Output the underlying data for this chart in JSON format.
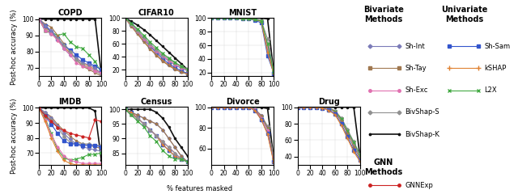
{
  "title_fontsize": 7,
  "axis_label_fontsize": 6,
  "tick_fontsize": 5.5,
  "legend_title_fontsize": 7,
  "legend_item_fontsize": 6,
  "ylabel": "Post-hoc accuracy (%)",
  "xlabel": "% features masked",
  "subplots": [
    "COPD",
    "CIFAR10",
    "MNIST",
    "IMDB",
    "Census",
    "Divorce",
    "Drug"
  ],
  "x": [
    0,
    10,
    20,
    30,
    40,
    50,
    60,
    70,
    80,
    90,
    100
  ],
  "colors": {
    "Sh-Int": "#7b7bb8",
    "Sh-Tay": "#a07850",
    "Sh-Exc": "#e070b0",
    "BivShap-S": "#909090",
    "BivShap-K": "#111111",
    "Sh-Sam": "#3355cc",
    "kSHAP": "#e08030",
    "L2X": "#44aa44",
    "GNNExp": "#cc2222"
  },
  "COPD": {
    "BivShap-K": [
      100,
      100,
      100,
      100,
      100,
      100,
      100,
      100,
      100,
      100,
      66
    ],
    "L2X": [
      100,
      93,
      92,
      90,
      91,
      86,
      83,
      82,
      78,
      74,
      67
    ],
    "Sh-Tay": [
      100,
      97,
      95,
      90,
      85,
      80,
      75,
      71,
      69,
      67,
      65
    ],
    "kSHAP": [
      100,
      95,
      92,
      87,
      83,
      79,
      76,
      73,
      71,
      69,
      67
    ],
    "Sh-Sam": [
      100,
      96,
      92,
      88,
      84,
      81,
      78,
      75,
      73,
      71,
      69
    ],
    "Sh-Int": [
      100,
      96,
      93,
      88,
      82,
      78,
      76,
      73,
      72,
      70,
      66
    ],
    "BivShap-S": [
      100,
      93,
      91,
      88,
      84,
      80,
      75,
      72,
      70,
      68,
      66
    ],
    "Sh-Exc": [
      100,
      93,
      91,
      87,
      82,
      78,
      73,
      71,
      70,
      68,
      67
    ]
  },
  "CIFAR10": {
    "BivShap-K": [
      100,
      95,
      89,
      82,
      74,
      65,
      56,
      47,
      38,
      29,
      20
    ],
    "Sh-Sam": [
      100,
      90,
      79,
      67,
      56,
      46,
      37,
      29,
      23,
      18,
      14
    ],
    "kSHAP": [
      100,
      88,
      76,
      64,
      53,
      43,
      34,
      27,
      21,
      16,
      13
    ],
    "Sh-Int": [
      100,
      89,
      78,
      67,
      57,
      48,
      40,
      33,
      27,
      22,
      18
    ],
    "Sh-Tay": [
      100,
      87,
      75,
      63,
      52,
      42,
      33,
      26,
      20,
      16,
      13
    ],
    "Sh-Exc": [
      100,
      90,
      79,
      68,
      58,
      49,
      41,
      34,
      28,
      23,
      19
    ],
    "BivShap-S": [
      100,
      91,
      81,
      70,
      60,
      51,
      43,
      36,
      30,
      25,
      21
    ],
    "L2X": [
      100,
      92,
      83,
      73,
      63,
      54,
      45,
      38,
      31,
      25,
      20
    ]
  },
  "MNIST": {
    "BivShap-K": [
      100,
      100,
      100,
      100,
      100,
      100,
      100,
      100,
      100,
      99,
      20
    ],
    "Sh-Int": [
      100,
      100,
      100,
      100,
      100,
      99,
      99,
      98,
      96,
      55,
      20
    ],
    "Sh-Tay": [
      100,
      100,
      100,
      100,
      100,
      99,
      99,
      98,
      96,
      60,
      18
    ],
    "Sh-Exc": [
      100,
      100,
      100,
      100,
      100,
      99,
      99,
      98,
      96,
      58,
      19
    ],
    "BivShap-S": [
      100,
      100,
      100,
      100,
      100,
      99,
      99,
      98,
      96,
      70,
      22
    ],
    "Sh-Sam": [
      100,
      100,
      100,
      100,
      100,
      99,
      99,
      97,
      93,
      45,
      19
    ],
    "kSHAP": [
      100,
      100,
      100,
      100,
      100,
      99,
      99,
      98,
      95,
      50,
      18
    ],
    "L2X": [
      100,
      100,
      100,
      100,
      100,
      99,
      99,
      98,
      96,
      62,
      21
    ]
  },
  "IMDB": {
    "BivShap-K": [
      100,
      100,
      100,
      100,
      100,
      100,
      100,
      100,
      100,
      98,
      65
    ],
    "Sh-Tay": [
      100,
      97,
      94,
      89,
      85,
      81,
      78,
      76,
      75,
      74,
      73
    ],
    "Sh-Int": [
      100,
      97,
      93,
      88,
      83,
      79,
      76,
      74,
      73,
      72,
      71
    ],
    "BivShap-S": [
      100,
      96,
      92,
      87,
      81,
      77,
      76,
      76,
      76,
      75,
      75
    ],
    "Sh-Sam": [
      100,
      95,
      89,
      83,
      78,
      76,
      76,
      75,
      75,
      75,
      74
    ],
    "L2X": [
      100,
      93,
      83,
      72,
      67,
      65,
      66,
      67,
      69,
      69,
      70
    ],
    "Sh-Exc": [
      100,
      92,
      82,
      74,
      68,
      65,
      64,
      63,
      63,
      63,
      63
    ],
    "kSHAP": [
      100,
      91,
      80,
      71,
      65,
      63,
      62,
      62,
      62,
      62,
      62
    ],
    "GNNExp": [
      100,
      95,
      91,
      87,
      85,
      83,
      82,
      81,
      80,
      92,
      91
    ]
  },
  "Census": {
    "BivShap-K": [
      100,
      100,
      100,
      100,
      100,
      99,
      97,
      94,
      90,
      87,
      84
    ],
    "Sh-Int": [
      100,
      99,
      98,
      97,
      96,
      95,
      93,
      90,
      87,
      84,
      82
    ],
    "Sh-Tay": [
      100,
      99,
      98,
      97,
      96,
      95,
      93,
      90,
      87,
      84,
      82
    ],
    "Sh-Sam": [
      100,
      99,
      97,
      95,
      93,
      91,
      88,
      86,
      84,
      83,
      82
    ],
    "kSHAP": [
      100,
      99,
      97,
      95,
      93,
      91,
      88,
      86,
      84,
      83,
      82
    ],
    "Sh-Exc": [
      100,
      98,
      97,
      95,
      93,
      91,
      89,
      87,
      85,
      83,
      82
    ],
    "BivShap-S": [
      100,
      98,
      97,
      95,
      93,
      91,
      89,
      87,
      85,
      83,
      82
    ],
    "L2X": [
      100,
      98,
      96,
      94,
      91,
      89,
      86,
      84,
      83,
      83,
      82
    ]
  },
  "Divorce": {
    "BivShap-K": [
      100,
      100,
      100,
      100,
      100,
      100,
      100,
      100,
      100,
      99,
      50
    ],
    "BivShap-S": [
      100,
      100,
      100,
      100,
      100,
      100,
      100,
      98,
      92,
      82,
      52
    ],
    "Sh-Int": [
      100,
      100,
      100,
      100,
      100,
      100,
      100,
      98,
      92,
      80,
      50
    ],
    "Sh-Tay": [
      100,
      100,
      100,
      100,
      100,
      100,
      100,
      98,
      92,
      80,
      50
    ],
    "L2X": [
      100,
      100,
      100,
      100,
      100,
      100,
      100,
      98,
      90,
      79,
      49
    ],
    "Sh-Exc": [
      100,
      100,
      100,
      100,
      100,
      100,
      100,
      98,
      90,
      78,
      48
    ],
    "Sh-Sam": [
      100,
      100,
      100,
      100,
      100,
      100,
      100,
      97,
      88,
      75,
      47
    ],
    "kSHAP": [
      100,
      100,
      100,
      100,
      100,
      100,
      100,
      97,
      88,
      74,
      46
    ]
  },
  "Drug": {
    "BivShap-K": [
      100,
      100,
      100,
      100,
      100,
      100,
      100,
      100,
      100,
      100,
      40
    ],
    "BivShap-S": [
      100,
      100,
      100,
      100,
      100,
      99,
      96,
      87,
      73,
      58,
      43
    ],
    "Sh-Int": [
      100,
      100,
      100,
      100,
      100,
      99,
      95,
      85,
      70,
      55,
      40
    ],
    "Sh-Exc": [
      100,
      100,
      100,
      100,
      100,
      99,
      95,
      85,
      70,
      56,
      41
    ],
    "L2X": [
      100,
      100,
      100,
      100,
      100,
      99,
      95,
      86,
      71,
      57,
      42
    ],
    "Sh-Tay": [
      100,
      100,
      100,
      100,
      100,
      99,
      94,
      83,
      68,
      52,
      38
    ],
    "Sh-Sam": [
      100,
      100,
      100,
      100,
      99,
      97,
      92,
      80,
      64,
      48,
      36
    ],
    "kSHAP": [
      100,
      100,
      100,
      100,
      99,
      96,
      91,
      78,
      62,
      46,
      34
    ]
  },
  "ylims": {
    "COPD": [
      65,
      101
    ],
    "CIFAR10": [
      10,
      101
    ],
    "MNIST": [
      15,
      101
    ],
    "IMDB": [
      62,
      101
    ],
    "Census": [
      81,
      101
    ],
    "Divorce": [
      44,
      101
    ],
    "Drug": [
      30,
      101
    ]
  },
  "yticks": {
    "COPD": [
      70,
      80,
      90,
      100
    ],
    "CIFAR10": [
      20,
      40,
      60,
      80,
      100
    ],
    "MNIST": [
      20,
      40,
      60,
      80,
      100
    ],
    "IMDB": [
      70,
      80,
      90,
      100
    ],
    "Census": [
      85,
      90,
      95,
      100
    ],
    "Divorce": [
      60,
      80,
      100
    ],
    "Drug": [
      40,
      60,
      80,
      100
    ]
  }
}
